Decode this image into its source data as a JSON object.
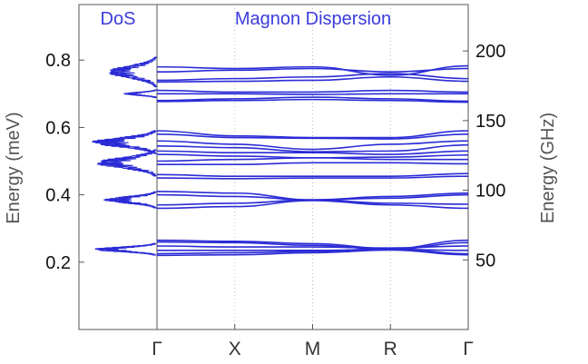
{
  "chart_data": [
    {
      "type": "area",
      "title": "DoS",
      "ylabel": "Energy (meV)",
      "ylim": [
        0.0,
        0.965
      ],
      "yticks": [
        0.2,
        0.4,
        0.6,
        0.8
      ],
      "ytick_labels": [
        "0.2",
        "0.4",
        "0.6",
        "0.8"
      ],
      "grid": false,
      "density_bands": [
        {
          "center": 0.765,
          "spread": 0.045,
          "peak": 0.68,
          "ripple": 0.9
        },
        {
          "center": 0.7,
          "spread": 0.012,
          "peak": 0.55,
          "ripple": 0.5
        },
        {
          "center": 0.556,
          "spread": 0.035,
          "peak": 0.85,
          "ripple": 1.0
        },
        {
          "center": 0.495,
          "spread": 0.04,
          "peak": 0.8,
          "ripple": 1.0
        },
        {
          "center": 0.385,
          "spread": 0.025,
          "peak": 0.75,
          "ripple": 0.8
        },
        {
          "center": 0.238,
          "spread": 0.018,
          "peak": 1.0,
          "ripple": 0.6
        }
      ]
    },
    {
      "type": "line",
      "title": "Magnon Dispersion",
      "categories": [
        "Γ",
        "X",
        "M",
        "R",
        "Γ"
      ],
      "ylabel_right": "Energy (GHz)",
      "ylim": [
        0.0,
        0.965
      ],
      "right_axis_factor": 241.8,
      "right_yticks": [
        50,
        100,
        150,
        200
      ],
      "right_ytick_labels": [
        "50",
        "100",
        "150",
        "200"
      ],
      "grid": "vertical dotted at X, M, R",
      "line_color": "#2b2bd6",
      "series": [
        {
          "values": [
            0.78,
            0.775,
            0.78,
            0.755,
            0.783
          ]
        },
        {
          "values": [
            0.765,
            0.77,
            0.775,
            0.765,
            0.775
          ]
        },
        {
          "values": [
            0.74,
            0.745,
            0.75,
            0.76,
            0.745
          ]
        },
        {
          "values": [
            0.735,
            0.737,
            0.74,
            0.75,
            0.737
          ]
        },
        {
          "values": [
            0.71,
            0.705,
            0.705,
            0.71,
            0.705
          ]
        },
        {
          "values": [
            0.7,
            0.7,
            0.698,
            0.7,
            0.7
          ]
        },
        {
          "values": [
            0.68,
            0.685,
            0.69,
            0.685,
            0.678
          ]
        },
        {
          "values": [
            0.677,
            0.68,
            0.683,
            0.68,
            0.675
          ]
        },
        {
          "values": [
            0.59,
            0.575,
            0.57,
            0.57,
            0.59
          ]
        },
        {
          "values": [
            0.58,
            0.57,
            0.568,
            0.566,
            0.58
          ]
        },
        {
          "values": [
            0.56,
            0.55,
            0.535,
            0.55,
            0.56
          ]
        },
        {
          "values": [
            0.545,
            0.54,
            0.528,
            0.53,
            0.548
          ]
        },
        {
          "values": [
            0.53,
            0.525,
            0.525,
            0.52,
            0.53
          ]
        },
        {
          "values": [
            0.52,
            0.515,
            0.51,
            0.512,
            0.518
          ]
        },
        {
          "values": [
            0.5,
            0.505,
            0.51,
            0.505,
            0.505
          ]
        },
        {
          "values": [
            0.49,
            0.49,
            0.495,
            0.495,
            0.492
          ]
        },
        {
          "values": [
            0.46,
            0.455,
            0.455,
            0.455,
            0.463
          ]
        },
        {
          "values": [
            0.45,
            0.448,
            0.45,
            0.45,
            0.455
          ]
        },
        {
          "values": [
            0.41,
            0.405,
            0.385,
            0.395,
            0.405
          ]
        },
        {
          "values": [
            0.4,
            0.395,
            0.385,
            0.39,
            0.4
          ]
        },
        {
          "values": [
            0.37,
            0.375,
            0.385,
            0.375,
            0.372
          ]
        },
        {
          "values": [
            0.36,
            0.365,
            0.383,
            0.37,
            0.36
          ]
        },
        {
          "values": [
            0.265,
            0.262,
            0.255,
            0.24,
            0.265
          ]
        },
        {
          "values": [
            0.26,
            0.258,
            0.25,
            0.238,
            0.258
          ]
        },
        {
          "values": [
            0.248,
            0.245,
            0.245,
            0.242,
            0.248
          ]
        },
        {
          "values": [
            0.235,
            0.235,
            0.235,
            0.238,
            0.235
          ]
        },
        {
          "values": [
            0.225,
            0.228,
            0.232,
            0.24,
            0.225
          ]
        },
        {
          "values": [
            0.22,
            0.222,
            0.228,
            0.236,
            0.222
          ]
        }
      ]
    }
  ]
}
